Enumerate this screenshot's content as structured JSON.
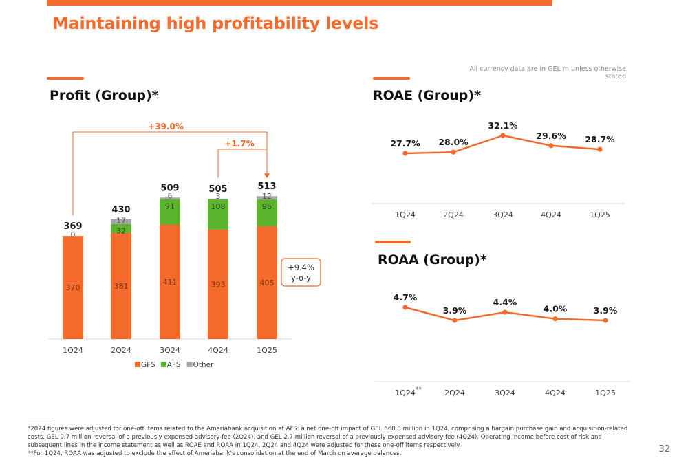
{
  "slide": {
    "title": "Maintaining high profitability levels",
    "currency_note": "All currency data are in GEL m unless otherwise stated",
    "page_number": "32",
    "accent_color": "#f46a2b"
  },
  "footnotes": [
    "*2024 figures were adjusted for one-off items related to the Ameriabank acquisition at AFS: a net one-off impact of GEL 668.8 million in 1Q24, comprising a bargain purchase gain and acquisition-related costs, GEL 0.7 million reversal of a previously expensed advisory fee (2Q24), and GEL 2.7 million reversal of a previously expensed advisory fee (4Q24). Operating income before cost of risk and subsequent lines in the income statement as well as ROAE and ROAA in 1Q24, 2Q24 and 4Q24 were adjusted for these one-off items respectively.",
    "**For 1Q24, ROAA was adjusted to exclude the effect of Ameriabank's consolidation at the end of March on average balances."
  ],
  "chart_data": [
    {
      "type": "bar",
      "stacked": true,
      "title": "Profit (Group)*",
      "categories": [
        "1Q24",
        "2Q24",
        "3Q24",
        "4Q24",
        "1Q25"
      ],
      "series": [
        {
          "name": "GFS",
          "color": "#f46a2b",
          "values": [
            370,
            381,
            411,
            393,
            405
          ],
          "labels": [
            "370",
            "381",
            "411",
            "393",
            "405"
          ]
        },
        {
          "name": "AFS",
          "color": "#5bb32e",
          "values": [
            0,
            32,
            91,
            108,
            96
          ],
          "labels": [
            "0",
            "32",
            "91",
            "108",
            "96"
          ]
        },
        {
          "name": "Other",
          "color": "#a6a6a6",
          "values": [
            0,
            17,
            6,
            3,
            12
          ],
          "labels": [
            "",
            "17",
            "6",
            "3",
            "12"
          ]
        }
      ],
      "totals": [
        "369",
        "430",
        "509",
        "505",
        "513"
      ],
      "annotations": {
        "growth_long": "+39.0%",
        "growth_short": "+1.7%",
        "yoy_value": "+9.4%",
        "yoy_label": "y-o-y"
      },
      "legend_position": "bottom",
      "grid": false
    },
    {
      "type": "line",
      "title": "ROAE (Group)*",
      "categories": [
        "1Q24",
        "2Q24",
        "3Q24",
        "4Q24",
        "1Q25"
      ],
      "values": [
        27.7,
        28.0,
        32.1,
        29.6,
        28.7
      ],
      "labels": [
        "27.7%",
        "28.0%",
        "32.1%",
        "29.6%",
        "28.7%"
      ],
      "color": "#f46a2b",
      "grid": false
    },
    {
      "type": "line",
      "title": "ROAA (Group)*",
      "categories": [
        "1Q24",
        "2Q24",
        "3Q24",
        "4Q24",
        "1Q25"
      ],
      "category_markers": [
        "**",
        "",
        "",
        "",
        ""
      ],
      "values": [
        4.7,
        3.9,
        4.4,
        4.0,
        3.9
      ],
      "labels": [
        "4.7%",
        "3.9%",
        "4.4%",
        "4.0%",
        "3.9%"
      ],
      "color": "#f46a2b",
      "grid": false
    }
  ]
}
